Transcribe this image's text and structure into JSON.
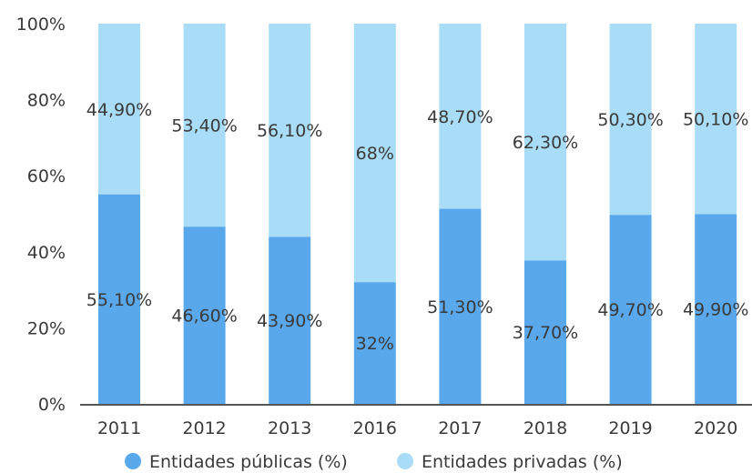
{
  "colors": {
    "publicas": "#5aa8ec",
    "privadas": "#a9ddf7",
    "axis": "#555555",
    "text": "#3a3a3a"
  },
  "chart_data": {
    "type": "bar",
    "stacked": true,
    "categories": [
      "2011",
      "2012",
      "2013",
      "2016",
      "2017",
      "2018",
      "2019",
      "2020"
    ],
    "series": [
      {
        "name": "Entidades públicas (%)",
        "values": [
          55.1,
          46.6,
          43.9,
          32,
          51.3,
          37.7,
          49.7,
          49.9
        ],
        "labels": [
          "55,10%",
          "46,60%",
          "43,90%",
          "32%",
          "51,30%",
          "37,70%",
          "49,70%",
          "49,90%"
        ]
      },
      {
        "name": "Entidades privadas (%)",
        "values": [
          44.9,
          53.4,
          56.1,
          68,
          48.7,
          62.3,
          50.3,
          50.1
        ],
        "labels": [
          "44,90%",
          "53,40%",
          "56,10%",
          "68%",
          "48,70%",
          "62,30%",
          "50,30%",
          "50,10%"
        ]
      }
    ],
    "y_ticks": [
      "0%",
      "20%",
      "40%",
      "60%",
      "80%",
      "100%"
    ],
    "ylim": [
      0,
      100
    ],
    "grid": false,
    "legend_position": "bottom"
  }
}
